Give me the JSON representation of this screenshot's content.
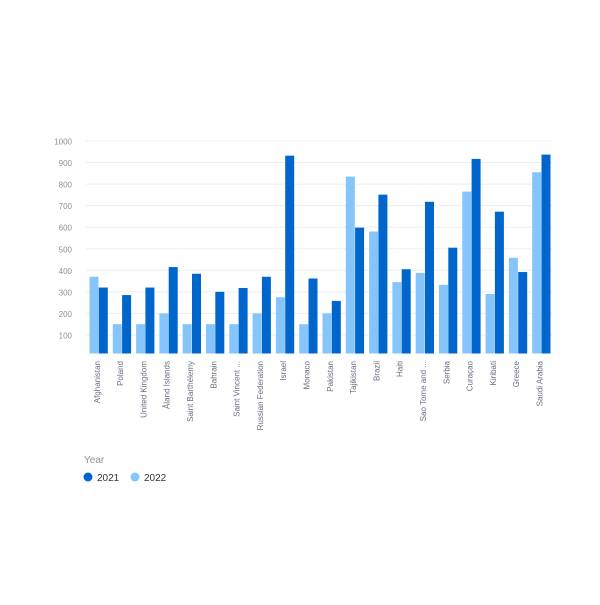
{
  "chart_data": {
    "type": "bar",
    "title": "",
    "xlabel": "",
    "ylabel": "",
    "ylim": [
      0,
      1000
    ],
    "yticks": [
      100,
      200,
      300,
      400,
      500,
      600,
      700,
      800,
      900,
      1000
    ],
    "grid": true,
    "legend": {
      "title": "Year",
      "placement": "bottom-left"
    },
    "categories": [
      "Afghanistan",
      "Poland",
      "United Kingdom",
      "Åland Islands",
      "Saint Barthélemy",
      "Bahrain",
      "Saint Vincent ...",
      "Russian Federation",
      "Israel",
      "Monaco",
      "Pakistan",
      "Tajikistan",
      "Brazil",
      "Haiti",
      "Sao Tome and ...",
      "Serbia",
      "Curaçao",
      "Kiribati",
      "Greece",
      "Saudi Arabia"
    ],
    "series": [
      {
        "name": "2022",
        "color": "#85c5fb",
        "values": [
          370,
          150,
          150,
          200,
          150,
          150,
          150,
          200,
          275,
          150,
          200,
          835,
          580,
          345,
          388,
          333,
          765,
          290,
          458,
          855
        ]
      },
      {
        "name": "2021",
        "color": "#0066cc",
        "values": [
          320,
          285,
          320,
          415,
          384,
          300,
          318,
          370,
          932,
          362,
          258,
          598,
          751,
          405,
          718,
          505,
          917,
          672,
          392,
          937
        ]
      }
    ]
  }
}
